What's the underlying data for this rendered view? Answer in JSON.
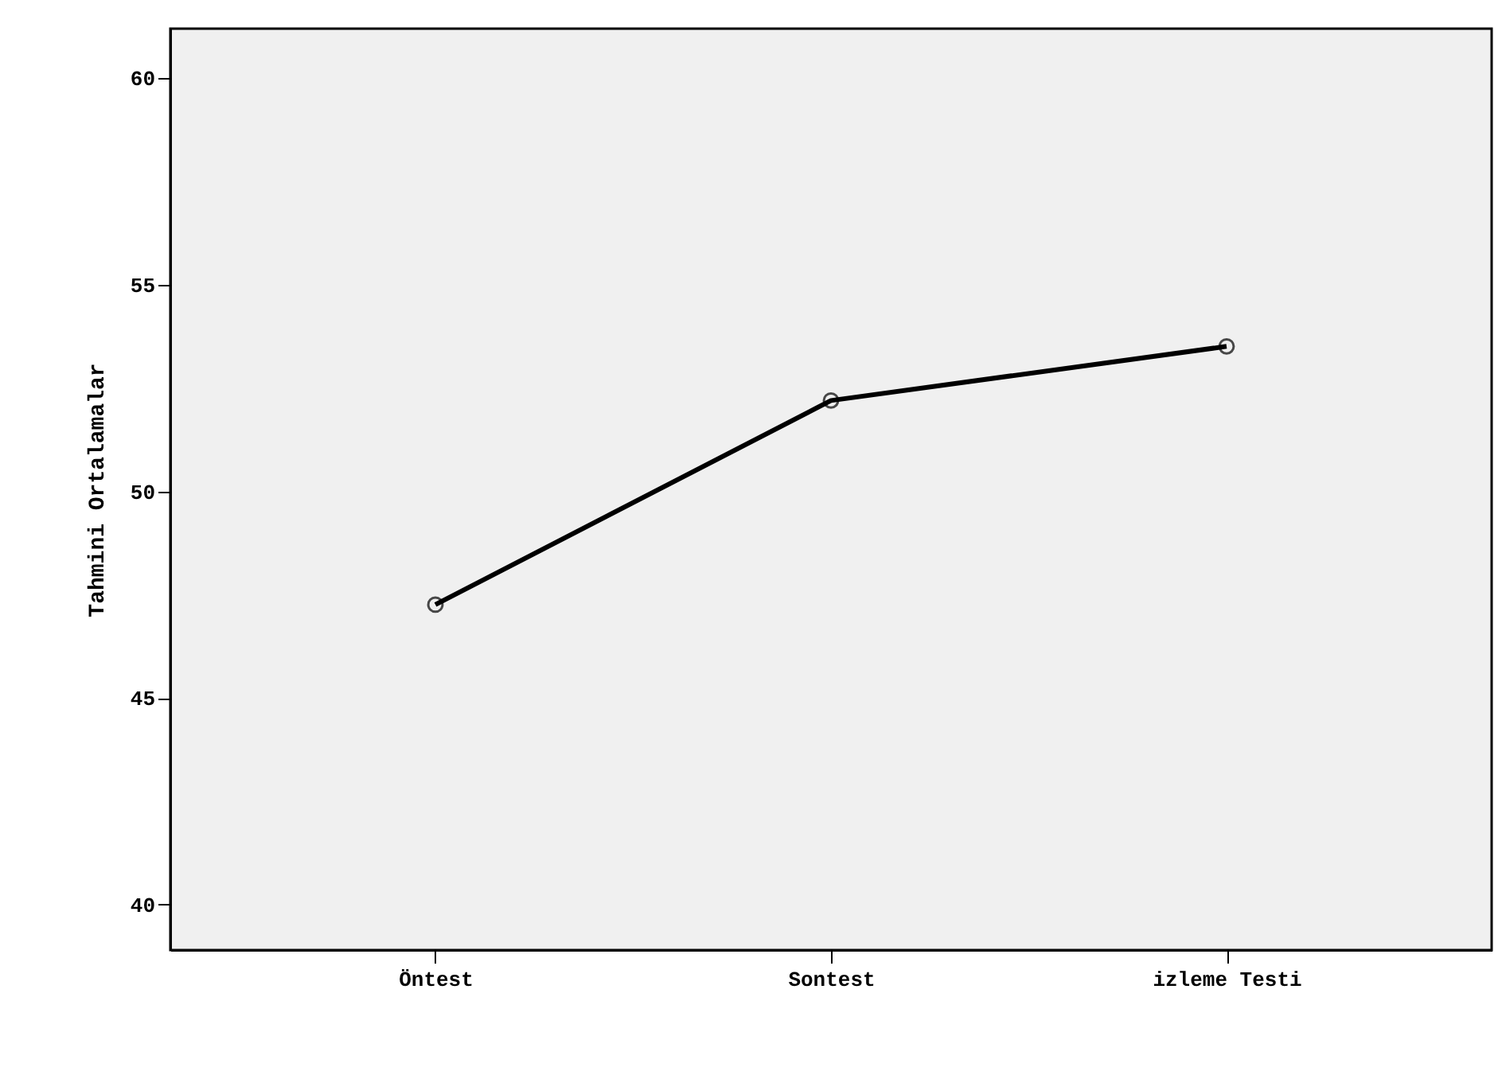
{
  "chart_data": {
    "type": "line",
    "ylabel": "Tahmini Ortalamalar",
    "categories": [
      "Öntest",
      "Sontest",
      "izleme Testi"
    ],
    "values": [
      47.26,
      52.2,
      53.51
    ],
    "color": "#000000",
    "ylim": [
      38.9,
      61.2
    ],
    "yticks": [
      40,
      45,
      50,
      55,
      60
    ],
    "grid": false,
    "marker": "circle",
    "line_style": "solid"
  }
}
